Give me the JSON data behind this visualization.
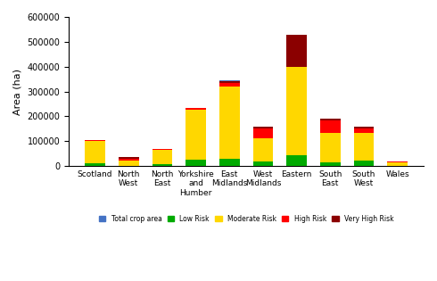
{
  "categories": [
    "Scotland",
    "North\nWest",
    "North\nEast",
    "Yorkshire\nand\nHumber",
    "East\nMidlands",
    "West\nMidlands",
    "Eastern",
    "South\nEast",
    "South\nWest",
    "Wales"
  ],
  "total_crop_area": [
    105000,
    35000,
    68000,
    235000,
    345000,
    158000,
    530000,
    190000,
    158000,
    18000
  ],
  "low_risk": [
    10000,
    2000,
    8000,
    25000,
    30000,
    18000,
    45000,
    15000,
    22000,
    2000
  ],
  "moderate_risk": [
    90000,
    20000,
    57000,
    200000,
    290000,
    95000,
    355000,
    120000,
    110000,
    13000
  ],
  "high_risk": [
    4000,
    8000,
    3000,
    10000,
    15000,
    40000,
    0,
    50000,
    20000,
    3000
  ],
  "very_high_risk": [
    0,
    5000,
    0,
    0,
    8000,
    5000,
    130000,
    5000,
    6000,
    0
  ],
  "colors": {
    "total_crop_area": "#4472C4",
    "low_risk": "#00AA00",
    "moderate_risk": "#FFD700",
    "high_risk": "#FF0000",
    "very_high_risk": "#8B0000"
  },
  "ylabel": "Area (ha)",
  "ylim": [
    0,
    600000
  ],
  "yticks": [
    0,
    100000,
    200000,
    300000,
    400000,
    500000,
    600000
  ],
  "legend_labels": [
    "Total crop area",
    "Low Risk",
    "Moderate Risk",
    "High Risk",
    "Very High Risk"
  ],
  "bar_width": 0.6
}
